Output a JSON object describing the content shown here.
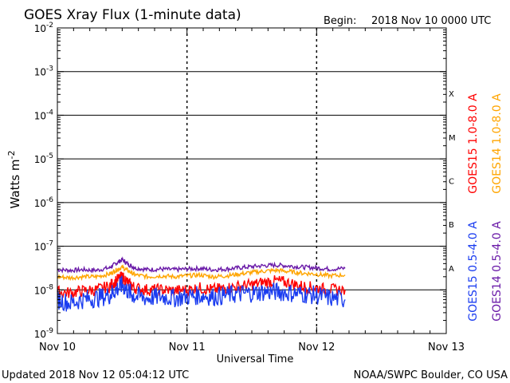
{
  "chart_data": {
    "type": "line",
    "title": "GOES Xray Flux (1-minute data)",
    "begin_label": "Begin:",
    "begin_value": "2018 Nov 10 0000 UTC",
    "xlabel": "Universal Time",
    "ylabel": "Watts m",
    "ylabel_sup": "-2",
    "x_ticks": [
      "Nov 10",
      "Nov 11",
      "Nov 12",
      "Nov 13"
    ],
    "x_range": [
      "2018-11-10T00:00",
      "2018-11-13T00:00"
    ],
    "y_scale": "log",
    "y_range": [
      1e-09,
      0.01
    ],
    "y_tick_exponents": [
      -9,
      -8,
      -7,
      -6,
      -5,
      -4,
      -3,
      -2
    ],
    "flare_classes": [
      "A",
      "B",
      "C",
      "M",
      "X"
    ],
    "series": [
      {
        "name": "GOES14 0.5-4.0 A",
        "color": "#6a1aa8",
        "x_days": [
          0.0,
          0.1,
          0.2,
          0.3,
          0.4,
          0.45,
          0.5,
          0.55,
          0.6,
          0.7,
          0.8,
          0.9,
          1.0,
          1.1,
          1.2,
          1.3,
          1.4,
          1.5,
          1.6,
          1.7,
          1.8,
          1.9,
          2.0,
          2.1,
          2.22
        ],
        "y": [
          2.9e-08,
          2.8e-08,
          2.9e-08,
          2.8e-08,
          3.2e-08,
          4e-08,
          4.9e-08,
          3.8e-08,
          3.2e-08,
          2.9e-08,
          3e-08,
          2.9e-08,
          3e-08,
          3.1e-08,
          2.9e-08,
          3e-08,
          3.2e-08,
          3.4e-08,
          3.6e-08,
          3.7e-08,
          3.5e-08,
          3.3e-08,
          3.2e-08,
          3e-08,
          3.1e-08
        ]
      },
      {
        "name": "GOES14 1.0-8.0 A",
        "color": "#ffa500",
        "x_days": [
          0.0,
          0.1,
          0.2,
          0.3,
          0.4,
          0.45,
          0.5,
          0.55,
          0.6,
          0.7,
          0.8,
          0.9,
          1.0,
          1.1,
          1.2,
          1.3,
          1.4,
          1.5,
          1.6,
          1.7,
          1.8,
          1.9,
          2.0,
          2.1,
          2.22
        ],
        "y": [
          2e-08,
          1.9e-08,
          2e-08,
          2e-08,
          2.3e-08,
          2.8e-08,
          3.3e-08,
          2.7e-08,
          2.2e-08,
          2e-08,
          2.1e-08,
          2e-08,
          2.1e-08,
          2.2e-08,
          2e-08,
          2.1e-08,
          2.3e-08,
          2.5e-08,
          2.7e-08,
          2.8e-08,
          2.6e-08,
          2.4e-08,
          2.3e-08,
          2.1e-08,
          2.2e-08
        ]
      },
      {
        "name": "GOES15 1.0-8.0 A",
        "color": "#ff0000",
        "x_days": [
          0.0,
          0.1,
          0.2,
          0.3,
          0.4,
          0.45,
          0.5,
          0.55,
          0.6,
          0.7,
          0.8,
          0.9,
          1.0,
          1.1,
          1.2,
          1.3,
          1.4,
          1.5,
          1.6,
          1.7,
          1.8,
          1.9,
          2.0,
          2.1,
          2.22
        ],
        "y": [
          9e-09,
          8.5e-09,
          9.5e-09,
          1e-08,
          1.2e-08,
          1.6e-08,
          2e-08,
          1.4e-08,
          1.1e-08,
          1e-08,
          1e-08,
          9.5e-09,
          1e-08,
          1.1e-08,
          1e-08,
          1.1e-08,
          1.2e-08,
          1.3e-08,
          1.5e-08,
          1.6e-08,
          1.4e-08,
          1.2e-08,
          1.1e-08,
          1e-08,
          1e-08
        ]
      },
      {
        "name": "GOES15 0.5-4.0 A",
        "color": "#1a3cf0",
        "x_days": [
          0.0,
          0.1,
          0.2,
          0.3,
          0.4,
          0.45,
          0.5,
          0.55,
          0.6,
          0.7,
          0.8,
          0.9,
          1.0,
          1.1,
          1.2,
          1.3,
          1.4,
          1.5,
          1.6,
          1.7,
          1.8,
          1.9,
          2.0,
          2.1,
          2.22
        ],
        "y": [
          6e-09,
          5e-09,
          6e-09,
          6.5e-09,
          7.5e-09,
          1e-08,
          1.3e-08,
          9e-09,
          7e-09,
          6.5e-09,
          7e-09,
          6.5e-09,
          7e-09,
          7.5e-09,
          7e-09,
          7.5e-09,
          8e-09,
          8.5e-09,
          9e-09,
          9e-09,
          8.5e-09,
          8e-09,
          7.5e-09,
          6.5e-09,
          6e-09
        ]
      }
    ],
    "legend_placement": "right",
    "grid": true
  },
  "footer": {
    "updated": "Updated 2018 Nov 12 05:04:12 UTC",
    "credit": "NOAA/SWPC Boulder, CO USA"
  }
}
